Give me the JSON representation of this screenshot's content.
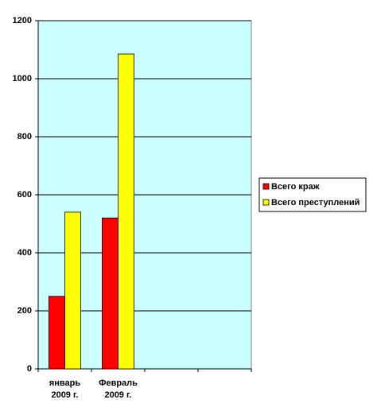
{
  "chart_data": {
    "type": "bar",
    "categories": [
      "январь 2009 г.",
      "Февраль 2009 г.",
      null,
      null
    ],
    "series": [
      {
        "name": "Всего краж",
        "color": "#ff0000",
        "values": [
          250,
          520,
          null,
          null
        ]
      },
      {
        "name": "Всего преступлений",
        "color": "#ffff00",
        "values": [
          540,
          1085,
          null,
          null
        ]
      }
    ],
    "ylim": [
      0,
      1200
    ],
    "yticks": [
      0,
      200,
      400,
      600,
      800,
      1000,
      1200
    ],
    "grid": true,
    "legend": "right",
    "plot_background": "#ccffff"
  }
}
